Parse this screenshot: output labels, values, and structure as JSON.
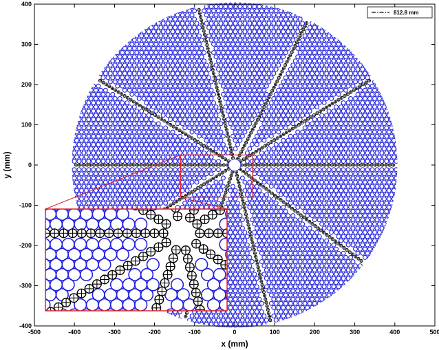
{
  "chart_data": {
    "type": "scatter",
    "title": "",
    "xlabel": "x (mm)",
    "ylabel": "y (mm)",
    "xlim": [
      -500,
      500
    ],
    "ylim": [
      -400,
      400
    ],
    "xticks": [
      -500,
      -400,
      -300,
      -200,
      -100,
      0,
      100,
      200,
      300,
      400,
      500
    ],
    "yticks": [
      -400,
      -300,
      -200,
      -100,
      0,
      100,
      200,
      300,
      400
    ],
    "grid": false,
    "legend": {
      "position": "top-right",
      "entries": [
        {
          "label": "812.8 mm",
          "style": "dash-dot"
        }
      ]
    },
    "aperture_diameter_mm": 812.8,
    "central_hole_diameter_mm": 30,
    "hex_cell_pitch_mm": 12,
    "spoke_angles_deg": [
      0,
      32,
      63,
      103,
      148,
      180,
      212,
      252,
      283,
      323
    ],
    "zoom_region": {
      "x": [
        -135,
        45
      ],
      "y": [
        -80,
        25
      ]
    },
    "colors": {
      "cells": "#2222dd",
      "spokes": "#000000",
      "zoom_box": "#e0202a",
      "central_hole": "#ffffff"
    }
  }
}
